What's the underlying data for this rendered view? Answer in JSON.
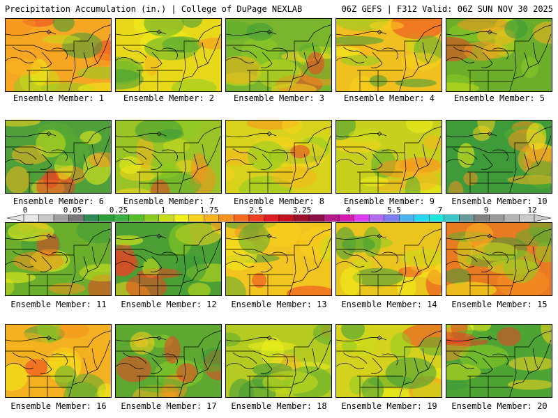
{
  "header": {
    "left_title": "Precipitation Accumulation (in.) | College of DuPage NEXLAB",
    "right_title": "06Z GEFS | F312 Valid: 06Z SUN NOV 30 2025"
  },
  "member_prefix": "Ensemble Member: ",
  "members": [
    {
      "label": "Ensemble Member: 1",
      "base": "#f5a623"
    },
    {
      "label": "Ensemble Member: 2",
      "base": "#e8d81a"
    },
    {
      "label": "Ensemble Member: 3",
      "base": "#7ab52e"
    },
    {
      "label": "Ensemble Member: 4",
      "base": "#f0c020"
    },
    {
      "label": "Ensemble Member: 5",
      "base": "#6cae2a"
    },
    {
      "label": "Ensemble Member: 6",
      "base": "#4fa03a"
    },
    {
      "label": "Ensemble Member: 7",
      "base": "#9ac425"
    },
    {
      "label": "Ensemble Member: 8",
      "base": "#d9d21c"
    },
    {
      "label": "Ensemble Member: 9",
      "base": "#c8d01e"
    },
    {
      "label": "Ensemble Member: 10",
      "base": "#3f9a3a"
    },
    {
      "label": "Ensemble Member: 11",
      "base": "#6aae2c"
    },
    {
      "label": "Ensemble Member: 12",
      "base": "#4c9f34"
    },
    {
      "label": "Ensemble Member: 13",
      "base": "#f2c41f"
    },
    {
      "label": "Ensemble Member: 14",
      "base": "#e9c51d"
    },
    {
      "label": "Ensemble Member: 15",
      "base": "#e87a22"
    },
    {
      "label": "Ensemble Member: 16",
      "base": "#f3b021"
    },
    {
      "label": "Ensemble Member: 17",
      "base": "#5ea832"
    },
    {
      "label": "Ensemble Member: 18",
      "base": "#b5cb22"
    },
    {
      "label": "Ensemble Member: 19",
      "base": "#d5d21d"
    },
    {
      "label": "Ensemble Member: 20",
      "base": "#4ea335"
    }
  ],
  "color_scale": {
    "tick_labels": [
      "0",
      "0.05",
      "0.25",
      "1",
      "1.75",
      "2.5",
      "3.25",
      "4",
      "5.5",
      "7",
      "9",
      "12"
    ],
    "colors": [
      "#e8e8e8",
      "#c8c8c8",
      "#a0a0a0",
      "#787878",
      "#2e8b57",
      "#2e9e3a",
      "#3cb043",
      "#55be2a",
      "#8ccc22",
      "#c9dd1a",
      "#f0f01a",
      "#f8d31c",
      "#f8b51e",
      "#f6921f",
      "#f36b20",
      "#ee3f22",
      "#e01b24",
      "#c1121f",
      "#9b0f2b",
      "#8c1045",
      "#b51a8a",
      "#d81bb0",
      "#e03cf0",
      "#b06df0",
      "#7e7ef0",
      "#4fb2f0",
      "#26d8f0",
      "#20e8e0",
      "#3cc8c8",
      "#6a9a9a",
      "#808080",
      "#9a9a9a",
      "#b4b4b4",
      "#cccccc"
    ]
  }
}
